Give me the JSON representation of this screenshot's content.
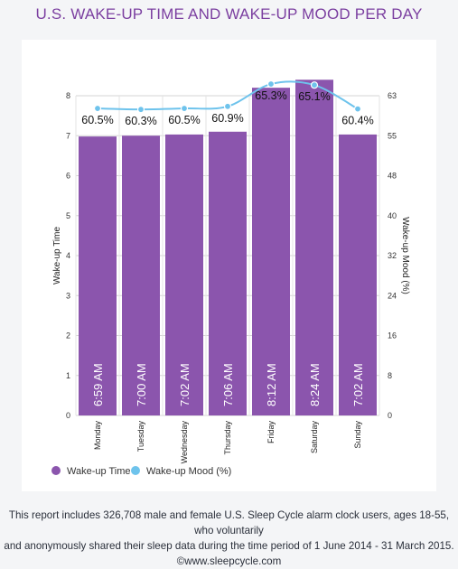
{
  "title": "U.S. WAKE-UP TIME AND WAKE-UP MOOD PER DAY",
  "chart_data": {
    "type": "bar",
    "categories": [
      "Monday",
      "Tuesday",
      "Wednesday",
      "Thursday",
      "Friday",
      "Saturday",
      "Sunday"
    ],
    "series": [
      {
        "name": "Wake-up Time",
        "type": "bar",
        "axis": "left",
        "values": [
          6.98,
          7.0,
          7.03,
          7.1,
          8.2,
          8.4,
          7.03
        ],
        "labels": [
          "6:59 AM",
          "7:00 AM",
          "7:02 AM",
          "7:06 AM",
          "8:12 AM",
          "8:24 AM",
          "7:02 AM"
        ],
        "color": "#8b55ad"
      },
      {
        "name": "Wake-up Mood (%)",
        "type": "line",
        "axis": "right",
        "values": [
          60.5,
          60.3,
          60.5,
          60.9,
          65.3,
          65.1,
          60.4
        ],
        "labels": [
          "60.5%",
          "60.3%",
          "60.5%",
          "60.9%",
          "65.3%",
          "65.1%",
          "60.4%"
        ],
        "color": "#6ec3ec"
      }
    ],
    "ylabel": "Wake-up Time",
    "y2label": "Wake-up Mood (%)",
    "ylim": [
      0,
      8
    ],
    "y2lim": [
      0,
      63
    ],
    "yticks": [
      "0",
      "1",
      "2",
      "3",
      "4",
      "5",
      "6",
      "7",
      "8"
    ],
    "y2ticks": [
      "0",
      "8",
      "16",
      "24",
      "32",
      "40",
      "48",
      "55",
      "63"
    ],
    "grid": true,
    "legend": "bottom-left"
  },
  "footer": {
    "line1": "This report includes 326,708 male and female U.S. Sleep Cycle alarm clock users, ages 18-55, who voluntarily",
    "line2": "and anonymously shared their sleep data during the time period of 1 June 2014 - 31 March 2015.",
    "line3": "©www.sleepcycle.com"
  }
}
